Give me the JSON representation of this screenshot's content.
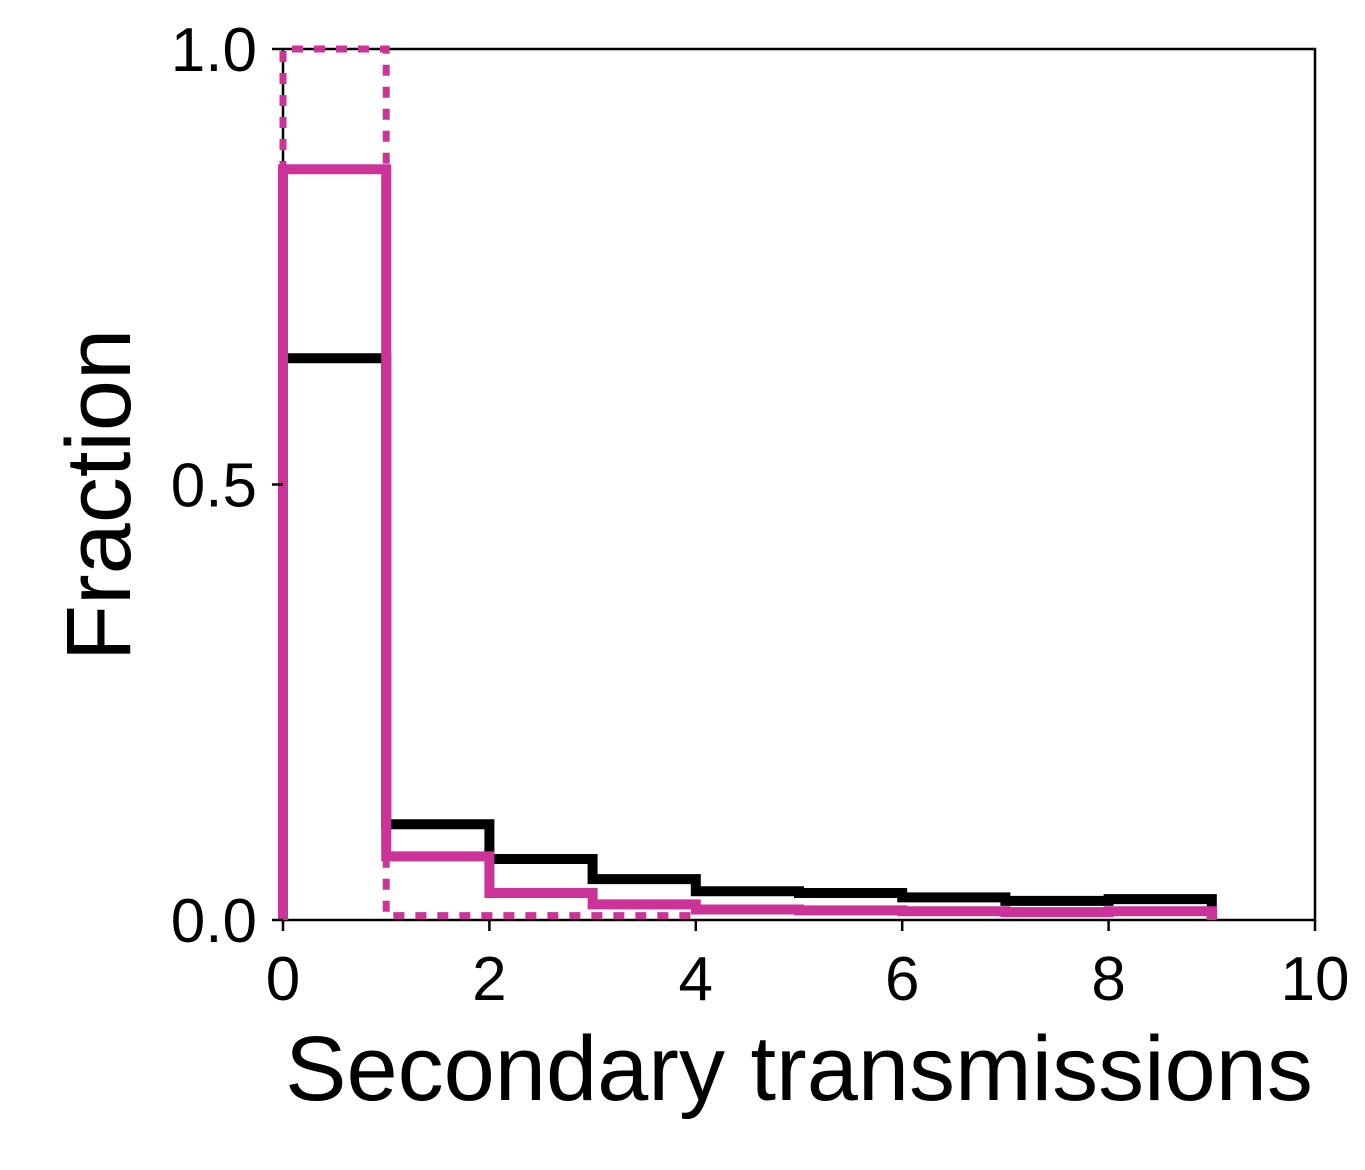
{
  "chart_data": {
    "type": "histogram-step",
    "xlabel": "Secondary transmissions",
    "ylabel": "Fraction",
    "xlim": [
      0,
      10
    ],
    "ylim": [
      0,
      1.0
    ],
    "x_ticks": [
      "0",
      "2",
      "4",
      "6",
      "8",
      "10"
    ],
    "y_ticks": [
      "0.0",
      "0.5",
      "1.0"
    ],
    "grid": false,
    "legend": "none",
    "bin_edges": [
      0,
      1,
      2,
      3,
      4,
      5,
      6,
      7,
      8,
      9
    ],
    "series": [
      {
        "color": "#000000",
        "style": "solid",
        "values": [
          0.645,
          0.11,
          0.07,
          0.047,
          0.033,
          0.031,
          0.026,
          0.022,
          0.024
        ]
      },
      {
        "color": "#cc3399",
        "style": "solid",
        "values": [
          0.862,
          0.073,
          0.031,
          0.018,
          0.012,
          0.011,
          0.01,
          0.009,
          0.01
        ]
      },
      {
        "color": "#cc3399",
        "style": "dotted",
        "values": [
          1.0,
          0.005,
          0.005,
          0.005
        ]
      }
    ]
  }
}
